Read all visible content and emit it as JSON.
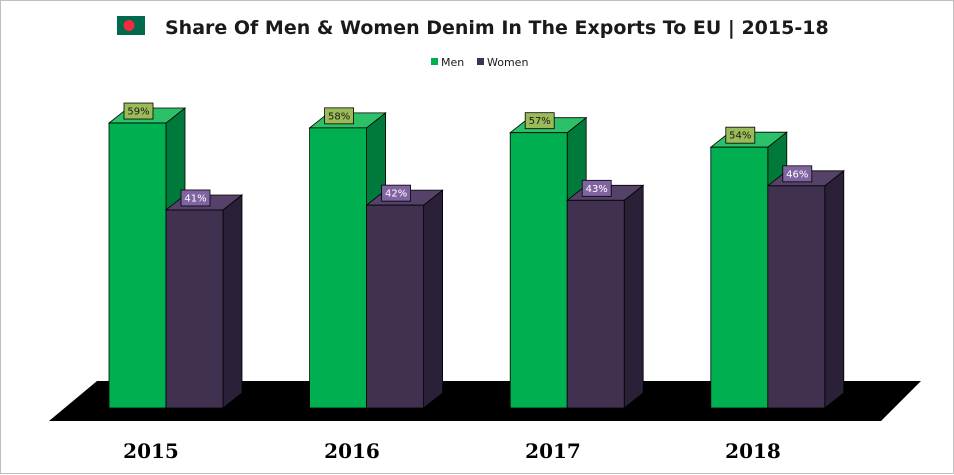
{
  "chart_data": {
    "type": "bar",
    "title": "Share Of Men & Women Denim In The Exports To EU | 2015-18",
    "categories": [
      "2015",
      "2016",
      "2017",
      "2018"
    ],
    "series": [
      {
        "name": "Men",
        "values": [
          59,
          58,
          57,
          54
        ],
        "labels": [
          "59%",
          "58%",
          "57%",
          "54%"
        ]
      },
      {
        "name": "Women",
        "values": [
          41,
          42,
          43,
          46
        ],
        "labels": [
          "41%",
          "42%",
          "43%",
          "46%"
        ]
      }
    ],
    "xlabel": "",
    "ylabel": "",
    "ylim": [
      0,
      70
    ],
    "grid": false,
    "legend": "top-center",
    "style": "3d-column"
  },
  "colors": {
    "men_front": "#00b050",
    "men_side": "#007a3a",
    "men_top": "#2cc069",
    "women_front": "#403151",
    "women_side": "#2a2037",
    "women_top": "#544268",
    "men_label_bg": "#9bbb59",
    "women_label_bg": "#8064a2",
    "floor": "#000000",
    "flag_green": "#006a4e",
    "flag_red": "#f42a41"
  },
  "icons": {
    "flag": "bangladesh-flag-icon"
  }
}
